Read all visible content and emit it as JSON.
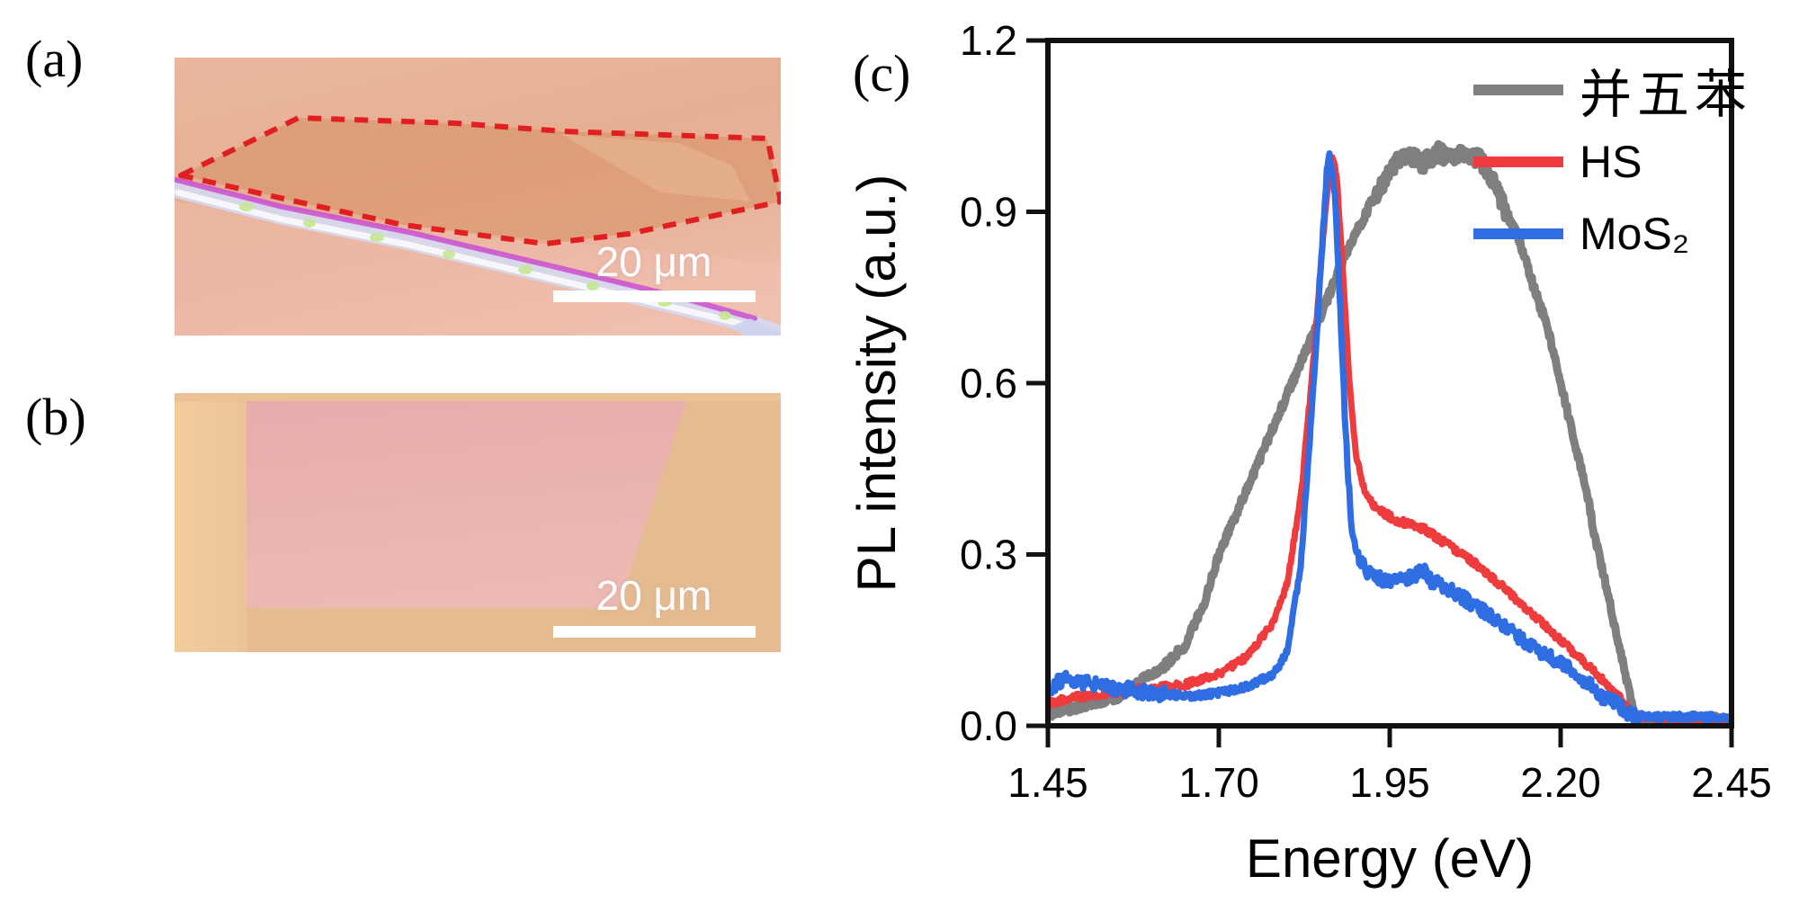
{
  "figure": {
    "panels": {
      "a": {
        "label": "(a)",
        "scalebar_text": "20 μm",
        "description": "optical micrograph of flake outlined by red dashed line",
        "outline_color": "#e02020",
        "background_color": "#e7b096",
        "flake_color": "#d68e5f",
        "scalebar_color": "#ffffff"
      },
      "b": {
        "label": "(b)",
        "scalebar_text": "20 μm",
        "description": "optical micrograph of pink rectangular flake",
        "background_color": "#e2ba8e",
        "flake_color": "#e8aeae",
        "scalebar_color": "#ffffff"
      },
      "c": {
        "label": "(c)"
      }
    }
  },
  "chart_data": {
    "type": "line",
    "title": "",
    "xlabel": "Energy (eV)",
    "ylabel": "PL intensity (a.u.)",
    "xlim": [
      1.45,
      2.45
    ],
    "ylim": [
      0.0,
      1.2
    ],
    "x_tick_labels": [
      "1.45",
      "1.70",
      "1.95",
      "2.20",
      "2.45"
    ],
    "x_tick_values": [
      1.45,
      1.7,
      1.95,
      2.2,
      2.45
    ],
    "y_tick_labels": [
      "0.0",
      "0.3",
      "0.6",
      "0.9",
      "1.2"
    ],
    "y_tick_values": [
      0.0,
      0.3,
      0.6,
      0.9,
      1.2
    ],
    "grid": false,
    "legend_position": "top-right",
    "series": [
      {
        "name": "并五苯",
        "color": "#7f7f7f",
        "points": [
          [
            1.45,
            0.02
          ],
          [
            1.5,
            0.035
          ],
          [
            1.55,
            0.05
          ],
          [
            1.6,
            0.09
          ],
          [
            1.62,
            0.105
          ],
          [
            1.65,
            0.14
          ],
          [
            1.68,
            0.22
          ],
          [
            1.7,
            0.3
          ],
          [
            1.75,
            0.44
          ],
          [
            1.8,
            0.58
          ],
          [
            1.85,
            0.72
          ],
          [
            1.88,
            0.81
          ],
          [
            1.92,
            0.91
          ],
          [
            1.95,
            0.97
          ],
          [
            1.97,
            1.0
          ],
          [
            2.0,
            0.985
          ],
          [
            2.02,
            1.005
          ],
          [
            2.04,
            0.99
          ],
          [
            2.06,
            1.0
          ],
          [
            2.08,
            0.995
          ],
          [
            2.1,
            0.955
          ],
          [
            2.12,
            0.9
          ],
          [
            2.14,
            0.85
          ],
          [
            2.16,
            0.77
          ],
          [
            2.18,
            0.7
          ],
          [
            2.2,
            0.6
          ],
          [
            2.22,
            0.5
          ],
          [
            2.24,
            0.4
          ],
          [
            2.25,
            0.33
          ],
          [
            2.26,
            0.28
          ],
          [
            2.28,
            0.17
          ],
          [
            2.295,
            0.09
          ],
          [
            2.305,
            0.03
          ],
          [
            2.315,
            0.012
          ],
          [
            2.35,
            0.01
          ],
          [
            2.4,
            0.012
          ],
          [
            2.45,
            0.01
          ]
        ]
      },
      {
        "name": "HS",
        "color": "#ee3b3d",
        "points": [
          [
            1.45,
            0.04
          ],
          [
            1.5,
            0.052
          ],
          [
            1.55,
            0.06
          ],
          [
            1.6,
            0.065
          ],
          [
            1.65,
            0.072
          ],
          [
            1.7,
            0.09
          ],
          [
            1.74,
            0.12
          ],
          [
            1.78,
            0.18
          ],
          [
            1.8,
            0.25
          ],
          [
            1.82,
            0.4
          ],
          [
            1.84,
            0.66
          ],
          [
            1.85,
            0.82
          ],
          [
            1.86,
            0.96
          ],
          [
            1.865,
            1.0
          ],
          [
            1.872,
            0.97
          ],
          [
            1.88,
            0.82
          ],
          [
            1.89,
            0.62
          ],
          [
            1.9,
            0.48
          ],
          [
            1.91,
            0.42
          ],
          [
            1.93,
            0.38
          ],
          [
            1.96,
            0.36
          ],
          [
            2.0,
            0.345
          ],
          [
            2.05,
            0.305
          ],
          [
            2.08,
            0.28
          ],
          [
            2.1,
            0.26
          ],
          [
            2.15,
            0.205
          ],
          [
            2.2,
            0.15
          ],
          [
            2.24,
            0.105
          ],
          [
            2.27,
            0.07
          ],
          [
            2.295,
            0.04
          ],
          [
            2.31,
            0.015
          ],
          [
            2.35,
            0.01
          ],
          [
            2.4,
            0.01
          ],
          [
            2.45,
            0.008
          ]
        ]
      },
      {
        "name": "MoS₂",
        "color": "#2e6de2",
        "points": [
          [
            1.45,
            0.065
          ],
          [
            1.475,
            0.082
          ],
          [
            1.5,
            0.075
          ],
          [
            1.54,
            0.068
          ],
          [
            1.58,
            0.062
          ],
          [
            1.62,
            0.055
          ],
          [
            1.66,
            0.052
          ],
          [
            1.7,
            0.058
          ],
          [
            1.74,
            0.068
          ],
          [
            1.78,
            0.09
          ],
          [
            1.8,
            0.13
          ],
          [
            1.82,
            0.28
          ],
          [
            1.84,
            0.62
          ],
          [
            1.85,
            0.82
          ],
          [
            1.858,
            0.97
          ],
          [
            1.862,
            1.0
          ],
          [
            1.87,
            0.93
          ],
          [
            1.878,
            0.72
          ],
          [
            1.886,
            0.5
          ],
          [
            1.894,
            0.35
          ],
          [
            1.9,
            0.3
          ],
          [
            1.92,
            0.265
          ],
          [
            1.95,
            0.25
          ],
          [
            1.98,
            0.26
          ],
          [
            2.0,
            0.272
          ],
          [
            2.01,
            0.255
          ],
          [
            2.05,
            0.23
          ],
          [
            2.1,
            0.19
          ],
          [
            2.15,
            0.145
          ],
          [
            2.2,
            0.11
          ],
          [
            2.24,
            0.075
          ],
          [
            2.26,
            0.05
          ],
          [
            2.28,
            0.04
          ],
          [
            2.3,
            0.02
          ],
          [
            2.315,
            0.015
          ],
          [
            2.35,
            0.015
          ],
          [
            2.4,
            0.016
          ],
          [
            2.45,
            0.013
          ]
        ]
      }
    ]
  }
}
